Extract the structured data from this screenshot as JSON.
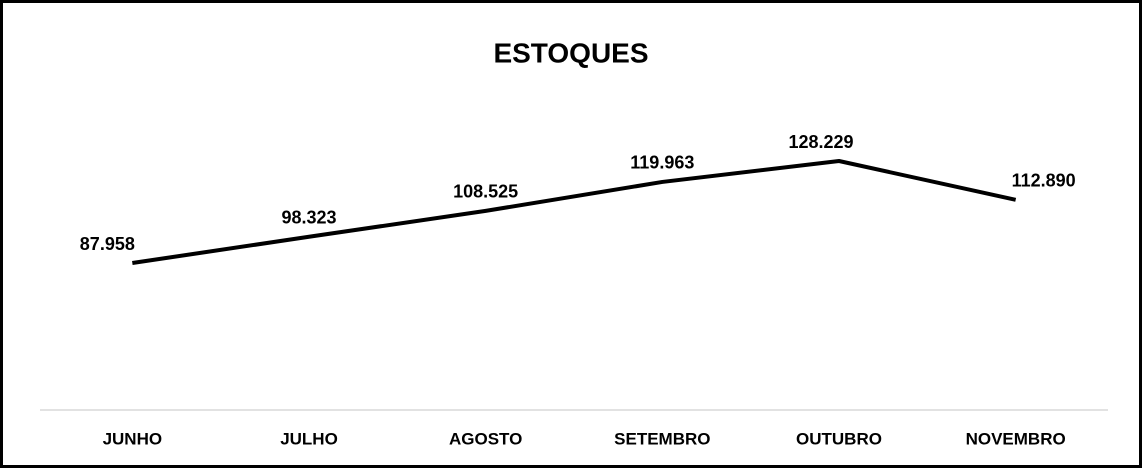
{
  "chart_data": {
    "type": "line",
    "title": "ESTOQUES",
    "categories": [
      "JUNHO",
      "JULHO",
      "AGOSTO",
      "SETEMBRO",
      "OUTUBRO",
      "NOVEMBRO"
    ],
    "values": [
      87958,
      98323,
      108525,
      119963,
      128229,
      112890
    ],
    "value_labels": [
      "87.958",
      "98.323",
      "108.525",
      "119.963",
      "128.229",
      "112.890"
    ],
    "color": "#000000"
  }
}
